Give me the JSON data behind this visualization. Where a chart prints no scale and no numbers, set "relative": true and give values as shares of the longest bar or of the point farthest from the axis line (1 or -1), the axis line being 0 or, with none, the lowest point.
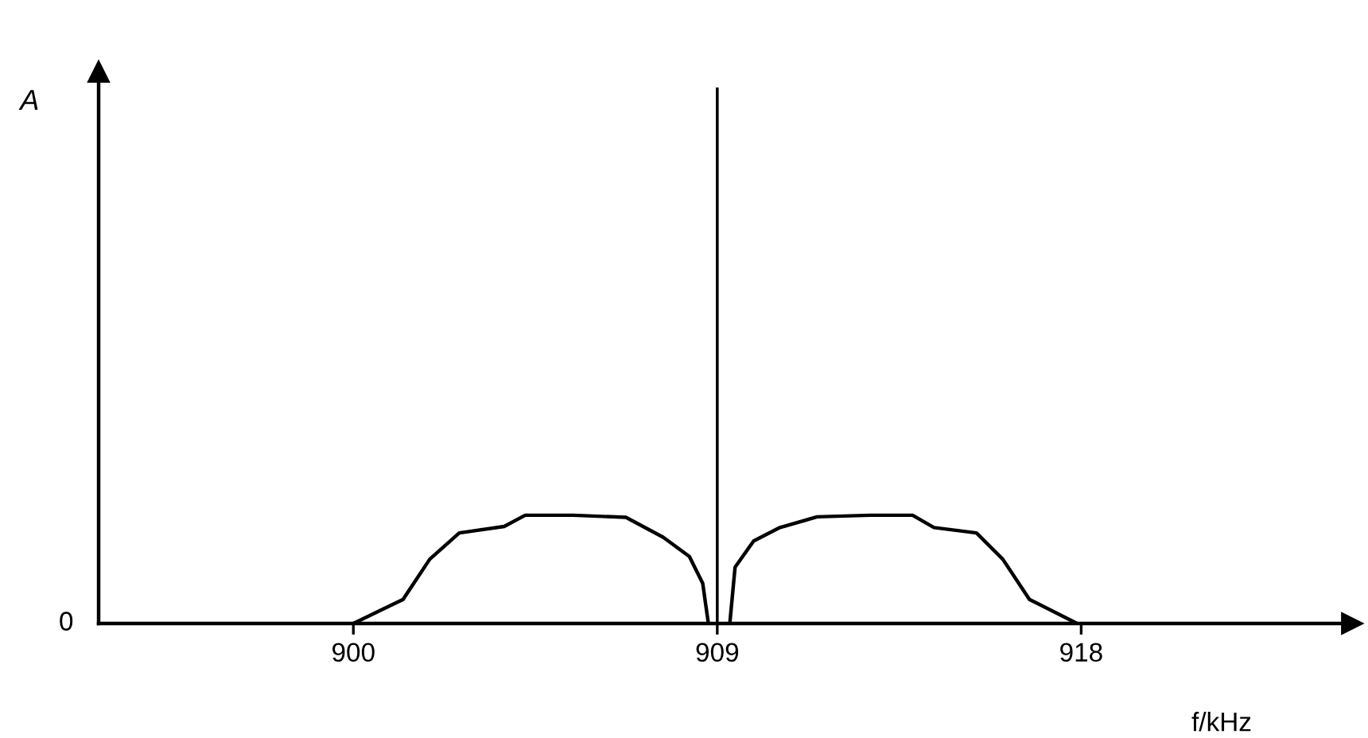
{
  "chart_data": {
    "type": "line",
    "relative": true,
    "xlabel": "f/kHz",
    "ylabel": "A",
    "annotations": [
      "0"
    ],
    "xlim": [
      893.7,
      924.7
    ],
    "xticks": [
      900,
      909,
      918
    ],
    "grid": false,
    "marker": "none",
    "line_style": "solid",
    "series": [
      {
        "color": "#000000",
        "x": [
          900.0,
          901.23,
          901.89,
          902.62,
          903.73,
          904.25,
          905.43,
          906.74,
          907.66,
          908.31,
          908.64,
          908.78
        ],
        "values": [
          0,
          0.045,
          0.12,
          0.169,
          0.181,
          0.202,
          0.202,
          0.198,
          0.161,
          0.125,
          0.075,
          0
        ]
      },
      {
        "type": "bar",
        "color": "#000000",
        "x": [
          909.0
        ],
        "values": [
          1
        ]
      },
      {
        "color": "#000000",
        "x": [
          909.31,
          909.44,
          909.9,
          910.55,
          911.47,
          912.79,
          913.83,
          914.36,
          915.41,
          916.06,
          916.72,
          917.9
        ],
        "values": [
          0,
          0.105,
          0.154,
          0.179,
          0.199,
          0.202,
          0.202,
          0.179,
          0.169,
          0.12,
          0.045,
          0
        ]
      }
    ]
  }
}
